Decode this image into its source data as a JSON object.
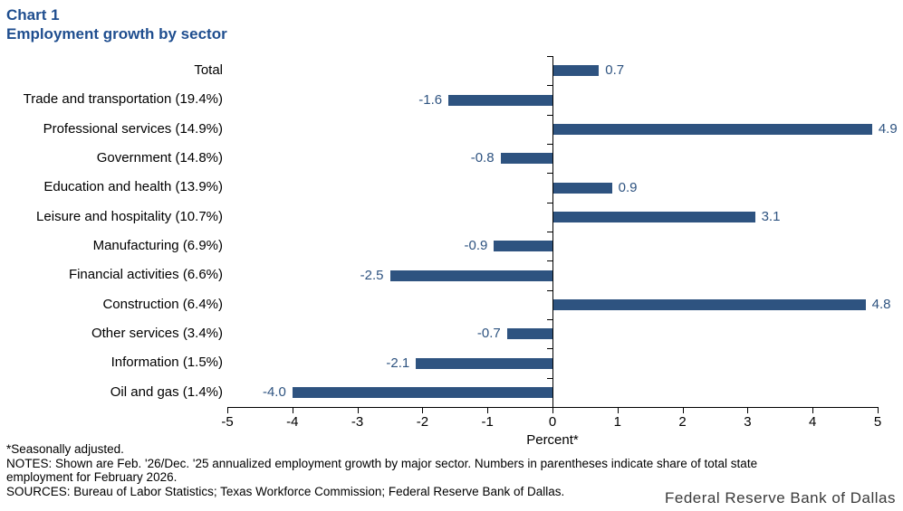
{
  "title": {
    "chart_number": "Chart 1",
    "text": "Employment growth by sector"
  },
  "chart_data": {
    "type": "bar",
    "orientation": "horizontal",
    "title": "Employment growth by sector",
    "categories": [
      "Total",
      "Trade and transportation (19.4%)",
      "Professional services (14.9%)",
      "Government (14.8%)",
      "Education and health (13.9%)",
      "Leisure and hospitality (10.7%)",
      "Manufacturing (6.9%)",
      "Financial activities (6.6%)",
      "Construction (6.4%)",
      "Other services (3.4%)",
      "Information (1.5%)",
      "Oil and gas (1.4%)"
    ],
    "values": [
      0.7,
      -1.6,
      4.9,
      -0.8,
      0.9,
      3.1,
      -0.9,
      -2.5,
      4.8,
      -0.7,
      -2.1,
      -4.0
    ],
    "value_labels": [
      "0.7",
      "-1.6",
      "4.9",
      "-0.8",
      "0.9",
      "3.1",
      "-0.9",
      "-2.5",
      "4.8",
      "-0.7",
      "-2.1",
      "-4.0"
    ],
    "xlabel": "Percent*",
    "xlim": [
      -5,
      5
    ],
    "xticks": [
      -5,
      -4,
      -3,
      -2,
      -1,
      0,
      1,
      2,
      3,
      4,
      5
    ],
    "grid": false,
    "legend": "none"
  },
  "colors": {
    "title_color": "#1F4E8F",
    "bar_color": "#2E5380",
    "value_label_color": "#2E5380",
    "axis_color": "#000000"
  },
  "footnotes": {
    "seasonal": "*Seasonally adjusted.",
    "notes_lines": [
      "NOTES: Shown are Feb. '26/Dec. '25 annualized employment growth by major sector. Numbers in parentheses indicate share of total state",
      "employment for February 2026."
    ],
    "sources": "SOURCES: Bureau of Labor Statistics; Texas Workforce Commission; Federal Reserve Bank of Dallas."
  },
  "branding": {
    "wordmark": "Federal Reserve Bank of Dallas"
  }
}
